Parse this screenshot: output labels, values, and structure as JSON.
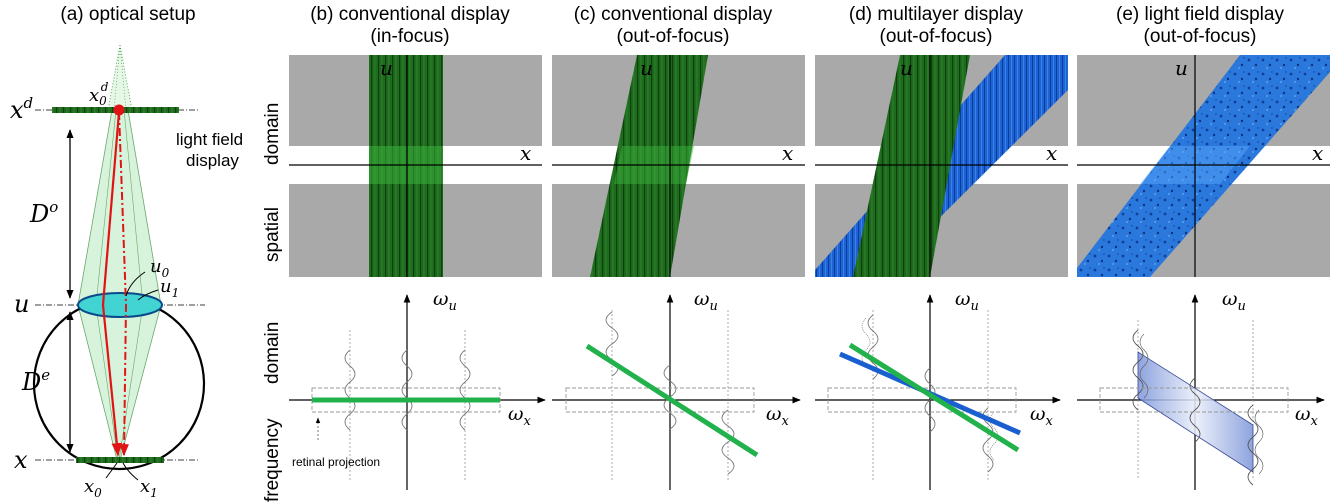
{
  "titles": {
    "a": "(a) optical setup",
    "b1": "(b) conventional display",
    "b2": "(in-focus)",
    "c1": "(c) conventional display",
    "c2": "(out-of-focus)",
    "d1": "(d) multilayer display",
    "d2": "(out-of-focus)",
    "e1": "(e) light field display",
    "e2": "(out-of-focus)"
  },
  "row_labels": {
    "spatial_1": "spatial",
    "spatial_2": "domain",
    "freq_1": "frequency",
    "freq_2": "domain"
  },
  "setup": {
    "xd_label": "x",
    "xd_sup": "d",
    "x0d_label": "x",
    "x0d_sub": "0",
    "x0d_sup": "d",
    "display_label_1": "light field",
    "display_label_2": "display",
    "Do_label": "D",
    "Do_sup": "o",
    "De_label": "D",
    "De_sup": "e",
    "u_label": "u",
    "u0_label": "u",
    "u0_sub": "0",
    "u1_label": "u",
    "u1_sub": "1",
    "x_label": "x",
    "x0_label": "x",
    "x0_sub": "0",
    "x1_label": "x",
    "x1_sub": "1"
  },
  "spatial_axes": {
    "u": "u",
    "x": "x"
  },
  "freq_axes": {
    "wu": "ω",
    "wu_sub": "u",
    "wx": "ω",
    "wx_sub": "x",
    "retinal": "retinal projection"
  },
  "colors": {
    "green": "#1e6b1e",
    "green_bright": "#22b24c",
    "blue": "#1a5fd0",
    "gray": "#a9a9a9",
    "red": "#e01414",
    "cyan": "#3fd0d0"
  }
}
